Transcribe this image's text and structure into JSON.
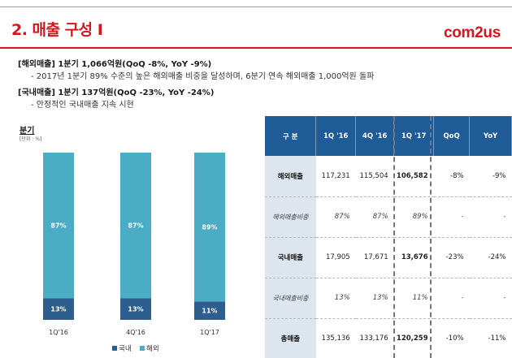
{
  "header": {
    "title": "2. 매출 구성 I",
    "logo": "com2us"
  },
  "summary": [
    {
      "heading": "[해외매출] 1분기 1,066억원(QoQ -8%, YoY -9%)",
      "detail": "- 2017년 1분기 89% 수준의 높은 해외매출 비중을 달성하며, 6분기 연속 해외매출 1,000억원 돌파"
    },
    {
      "heading": "[국내매출] 1분기 137억원(QoQ -23%, YoY -24%)",
      "detail": "- 안정적인 국내매출 지속 시현"
    }
  ],
  "chart_title": "분기",
  "chart_unit": "[단위 : %]",
  "chart_data": {
    "type": "bar",
    "stacked": true,
    "categories": [
      "1Q'16",
      "4Q'16",
      "1Q'17"
    ],
    "series": [
      {
        "name": "국내",
        "values": [
          13,
          13,
          11
        ],
        "labels": [
          "13%",
          "13%",
          "11%"
        ],
        "color": "#2e5e8e"
      },
      {
        "name": "해외",
        "values": [
          87,
          87,
          89
        ],
        "labels": [
          "87%",
          "87%",
          "89%"
        ],
        "color": "#4bacc6"
      }
    ],
    "ylim": [
      0,
      100
    ],
    "grid": false,
    "legend": "bottom"
  },
  "table": {
    "headers": [
      "구 분",
      "1Q '16",
      "4Q '16",
      "1Q '17",
      "QoQ",
      "YoY"
    ],
    "rows": [
      {
        "label": "해외매출",
        "cells": [
          "117,231",
          "115,504",
          "106,582",
          "-8%",
          "-9%"
        ],
        "italic": false
      },
      {
        "label": "해외매출비중",
        "cells": [
          "87%",
          "87%",
          "89%",
          "-",
          "-"
        ],
        "italic": true
      },
      {
        "label": "국내매출",
        "cells": [
          "17,905",
          "17,671",
          "13,676",
          "-23%",
          "-24%"
        ],
        "italic": false
      },
      {
        "label": "국내매출비중",
        "cells": [
          "13%",
          "13%",
          "11%",
          "-",
          "-"
        ],
        "italic": true
      },
      {
        "label": "총매출",
        "cells": [
          "135,136",
          "133,176",
          "120,259",
          "-10%",
          "-11%"
        ],
        "italic": false
      }
    ]
  },
  "colors": {
    "accent": "#d7151c",
    "header_blue": "#1f5b96",
    "row_label_bg": "#dde5ef"
  }
}
